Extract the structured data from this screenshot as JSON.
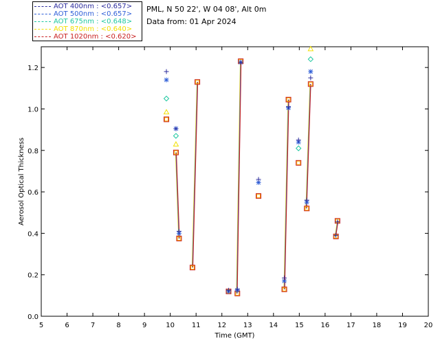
{
  "header": {
    "station": "PML, N 50 22', W 04 08', Alt 0m",
    "date_line": "Data from: 01 Apr 2024"
  },
  "legend": {
    "items": [
      {
        "label": "AOT  400nm : <0.657>",
        "color": "#2b2b9c"
      },
      {
        "label": "AOT  500nm : <0.657>",
        "color": "#2f5fd8"
      },
      {
        "label": "AOT  675nm : <0.648>",
        "color": "#1ec8a0"
      },
      {
        "label": "AOT  870nm : <0.640>",
        "color": "#f2e000"
      },
      {
        "label": "AOT 1020nm : <0.620>",
        "color": "#c81e1e"
      }
    ]
  },
  "chart_data": {
    "type": "scatter",
    "title": "",
    "xlabel": "Time (GMT)",
    "ylabel": "Aerosol Optical Thickness",
    "xlim": [
      5,
      20
    ],
    "ylim": [
      0.0,
      1.3
    ],
    "xticks": [
      5,
      6,
      7,
      8,
      9,
      10,
      11,
      12,
      13,
      14,
      15,
      16,
      17,
      18,
      19,
      20
    ],
    "yticks": [
      0.0,
      0.2,
      0.4,
      0.6,
      0.8,
      1.0,
      1.2
    ],
    "ytick_labels": [
      "0.0",
      "0.2",
      "0.4",
      "0.6",
      "0.8",
      "1.0",
      "1.2"
    ],
    "segments": [
      [
        {
          "x": 10.22,
          "y": 0.79
        },
        {
          "x": 10.34,
          "y": 0.375
        }
      ],
      [
        {
          "x": 10.86,
          "y": 0.235
        },
        {
          "x": 11.05,
          "y": 1.13
        }
      ],
      [
        {
          "x": 12.58,
          "y": 0.11
        },
        {
          "x": 12.73,
          "y": 1.23
        }
      ],
      [
        {
          "x": 14.42,
          "y": 0.13
        },
        {
          "x": 14.58,
          "y": 1.045
        }
      ],
      [
        {
          "x": 15.27,
          "y": 0.52
        },
        {
          "x": 15.43,
          "y": 1.12
        }
      ],
      [
        {
          "x": 16.4,
          "y": 0.385
        },
        {
          "x": 16.49,
          "y": 0.46
        }
      ]
    ],
    "series": [
      {
        "name": "AOT 400nm",
        "marker": "plus",
        "color": "#2b2b9c",
        "x": [
          9.85,
          10.22,
          10.34,
          12.26,
          12.6,
          12.73,
          13.42,
          14.42,
          14.58,
          14.97,
          15.29,
          15.44,
          16.42,
          16.48
        ],
        "y": [
          1.18,
          0.905,
          0.41,
          0.125,
          0.13,
          1.225,
          0.66,
          0.185,
          1.01,
          0.85,
          0.56,
          1.15,
          0.39,
          0.455
        ]
      },
      {
        "name": "AOT 500nm",
        "marker": "asterisk",
        "color": "#2f5fd8",
        "x": [
          9.85,
          10.22,
          10.34,
          12.26,
          12.6,
          12.73,
          13.42,
          14.42,
          14.58,
          14.97,
          15.29,
          15.44
        ],
        "y": [
          1.14,
          0.905,
          0.4,
          0.12,
          0.125,
          1.225,
          0.645,
          0.17,
          1.005,
          0.84,
          0.55,
          1.18
        ]
      },
      {
        "name": "AOT 675nm",
        "marker": "diamond",
        "color": "#1ec8a0",
        "x": [
          9.85,
          10.22,
          14.97,
          15.44
        ],
        "y": [
          1.05,
          0.87,
          0.81,
          1.24
        ]
      },
      {
        "name": "AOT 870nm",
        "marker": "triangle",
        "color": "#f2e000",
        "x": [
          9.85,
          10.22,
          15.44
        ],
        "y": [
          0.985,
          0.83,
          1.29
        ]
      },
      {
        "name": "AOT 1020nm",
        "marker": "square",
        "color": "#c81e1e",
        "x": [
          9.85,
          10.22,
          10.34,
          10.86,
          11.05,
          12.26,
          12.6,
          12.73,
          13.42,
          14.42,
          14.58,
          14.97,
          15.29,
          15.44,
          16.42,
          16.48
        ],
        "y": [
          0.95,
          0.79,
          0.375,
          0.235,
          1.13,
          0.12,
          0.11,
          1.23,
          0.58,
          0.13,
          1.045,
          0.74,
          0.52,
          1.12,
          0.385,
          0.46
        ]
      }
    ]
  }
}
